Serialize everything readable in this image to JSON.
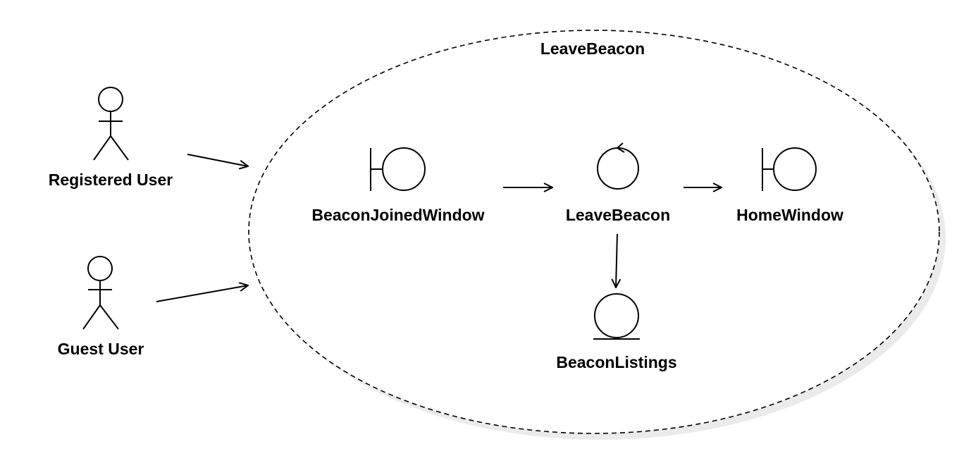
{
  "boundary": {
    "title": "LeaveBeacon"
  },
  "actors": [
    {
      "id": "registered-user",
      "label": "Registered User"
    },
    {
      "id": "guest-user",
      "label": "Guest User"
    }
  ],
  "elements": [
    {
      "id": "beacon-joined-window",
      "kind": "boundary",
      "label": "BeaconJoinedWindow"
    },
    {
      "id": "leave-beacon",
      "kind": "control",
      "label": "LeaveBeacon"
    },
    {
      "id": "home-window",
      "kind": "boundary",
      "label": "HomeWindow"
    },
    {
      "id": "beacon-listings",
      "kind": "entity",
      "label": "BeaconListings"
    }
  ],
  "connections": [
    {
      "from": "registered-user",
      "to": "leave-beacon-use-case"
    },
    {
      "from": "guest-user",
      "to": "leave-beacon-use-case"
    },
    {
      "from": "beacon-joined-window",
      "to": "leave-beacon"
    },
    {
      "from": "leave-beacon",
      "to": "home-window"
    },
    {
      "from": "leave-beacon",
      "to": "beacon-listings"
    }
  ],
  "colors": {
    "line": "#000000",
    "shadow": "#e8e8e8",
    "background": "#ffffff"
  }
}
